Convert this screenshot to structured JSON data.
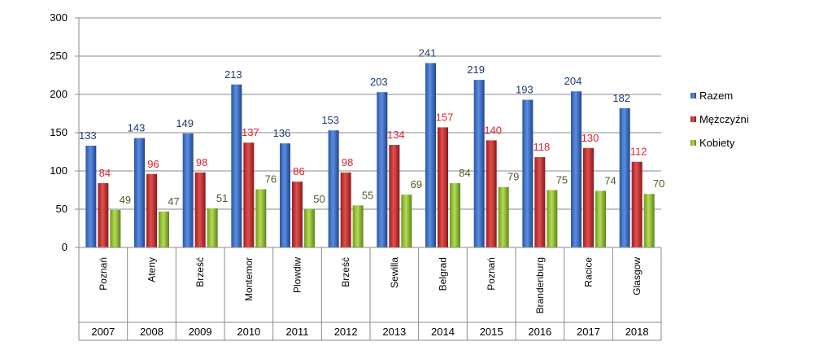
{
  "chart_data": {
    "type": "bar",
    "categories": [
      "Poznań",
      "Ateny",
      "Brześć",
      "Montemor",
      "Plowdiw",
      "Brześć",
      "Sewilla",
      "Belgrad",
      "Poznań",
      "Brandenburg",
      "Racice",
      "Glasgow"
    ],
    "years": [
      "2007",
      "2008",
      "2009",
      "2010",
      "2011",
      "2012",
      "2013",
      "2014",
      "2015",
      "2016",
      "2017",
      "2018"
    ],
    "series": [
      {
        "name": "Razem",
        "values": [
          133,
          143,
          149,
          213,
          136,
          153,
          203,
          241,
          219,
          193,
          204,
          182
        ],
        "color": "#3a6fc4",
        "label_color": "#1f3a6e"
      },
      {
        "name": "Mężczyźni",
        "values": [
          84,
          96,
          98,
          137,
          86,
          98,
          134,
          157,
          140,
          118,
          130,
          112
        ],
        "color": "#c83232",
        "label_color": "#e0202a"
      },
      {
        "name": "Kobiety",
        "values": [
          49,
          47,
          51,
          76,
          50,
          55,
          69,
          84,
          79,
          75,
          74,
          70
        ],
        "color": "#8fb832",
        "label_color": "#4f5a2a"
      }
    ],
    "ylim": [
      0,
      300
    ],
    "yticks": [
      0,
      50,
      100,
      150,
      200,
      250,
      300
    ],
    "grid": true,
    "legend_position": "right",
    "title": "",
    "xlabel": "",
    "ylabel": ""
  }
}
